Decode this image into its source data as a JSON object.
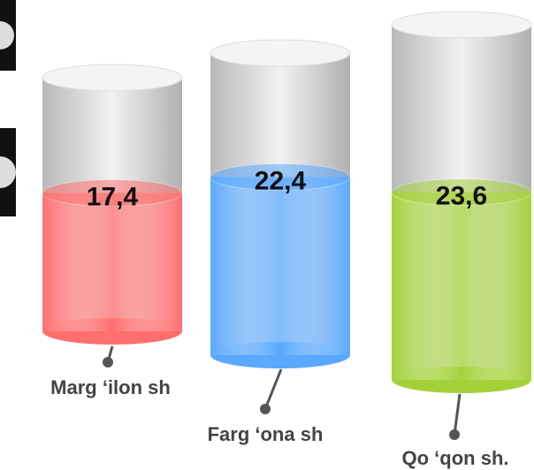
{
  "chart_data": {
    "type": "cylinder",
    "categories": [
      "Marg  ‘ilon sh",
      "Farg ‘ona sh",
      "Qo ‘qon sh."
    ],
    "series": [
      {
        "values": [
          17.4,
          22.4,
          23.6
        ],
        "value_labels": [
          "17,4",
          "22,4",
          "23,6"
        ],
        "colors": [
          "#ff6f6f",
          "#5aa8ff",
          "#a4d13a"
        ]
      }
    ]
  }
}
